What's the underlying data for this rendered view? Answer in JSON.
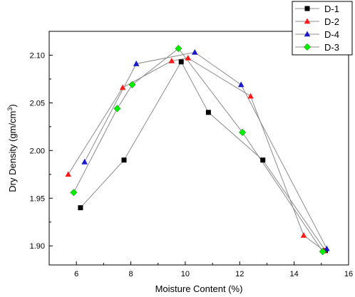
{
  "chart_data": {
    "type": "scatter",
    "xlabel": "Moisture Content (%)",
    "ylabel_main": "Dry Density (gm/cm",
    "ylabel_sup": "3",
    "ylabel_close": ")",
    "xlim": [
      5,
      16
    ],
    "ylim": [
      1.88,
      2.125
    ],
    "x_ticks": [
      6,
      8,
      10,
      12,
      14,
      16
    ],
    "y_ticks": [
      1.9,
      1.95,
      2.0,
      2.05,
      2.1
    ],
    "grid": false,
    "legend_position": "top-right",
    "series": [
      {
        "name": "D-1",
        "marker": "square",
        "color": "#000000",
        "points": [
          [
            6.15,
            1.94
          ],
          [
            7.75,
            1.99
          ],
          [
            9.85,
            2.093
          ],
          [
            10.85,
            2.04
          ],
          [
            12.85,
            1.99
          ],
          [
            15.15,
            1.895
          ]
        ]
      },
      {
        "name": "D-2",
        "marker": "triangle",
        "color": "#ff1a1a",
        "points": [
          [
            5.7,
            1.975
          ],
          [
            7.7,
            2.066
          ],
          [
            9.5,
            2.094
          ],
          [
            10.1,
            2.097
          ],
          [
            12.4,
            2.057
          ],
          [
            14.35,
            1.911
          ],
          [
            15.1,
            1.895
          ]
        ]
      },
      {
        "name": "D-4",
        "marker": "triangle",
        "color": "#1a1acc",
        "points": [
          [
            6.3,
            1.988
          ],
          [
            8.2,
            2.091
          ],
          [
            10.35,
            2.103
          ],
          [
            12.05,
            2.069
          ],
          [
            15.2,
            1.897
          ]
        ]
      },
      {
        "name": "D-3",
        "marker": "diamond",
        "color": "#00ee00",
        "points": [
          [
            5.9,
            1.956
          ],
          [
            7.5,
            2.044
          ],
          [
            8.05,
            2.069
          ],
          [
            9.75,
            2.107
          ],
          [
            12.1,
            2.019
          ],
          [
            15.05,
            1.894
          ]
        ]
      }
    ]
  }
}
